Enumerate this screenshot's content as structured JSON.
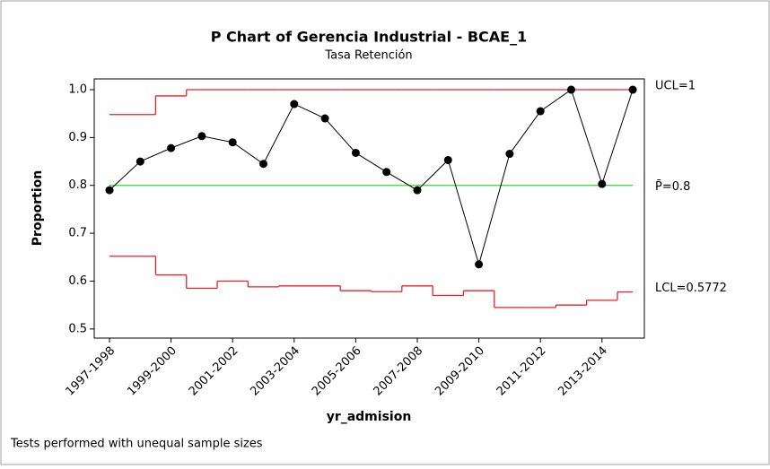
{
  "chart_data": {
    "type": "p-chart",
    "title": "P Chart of Gerencia Industrial - BCAE_1",
    "subtitle": "Tasa Retención",
    "ylabel": "Proportion",
    "xlabel": "yr_admision",
    "footnote": "Tests performed with unequal sample sizes",
    "categories": [
      "1997-1998",
      null,
      "1999-2000",
      null,
      "2001-2002",
      null,
      "2003-2004",
      null,
      "2005-2006",
      null,
      "2007-2008",
      null,
      "2009-2010",
      null,
      "2011-2012",
      null,
      "2013-2014",
      null
    ],
    "values": [
      0.79,
      0.85,
      0.878,
      0.903,
      0.89,
      0.845,
      0.97,
      0.94,
      0.868,
      0.828,
      0.79,
      0.853,
      0.635,
      0.866,
      0.955,
      1.0,
      0.803,
      1.0
    ],
    "ucl": [
      0.948,
      0.948,
      0.987,
      1,
      1,
      1,
      1,
      1,
      1,
      1,
      1,
      1,
      1,
      1,
      1,
      1,
      1,
      1
    ],
    "lcl": [
      0.652,
      0.652,
      0.613,
      0.585,
      0.6,
      0.588,
      0.59,
      0.59,
      0.58,
      0.578,
      0.59,
      0.57,
      0.58,
      0.545,
      0.545,
      0.55,
      0.56,
      0.5772
    ],
    "center": 0.8,
    "ucl_label": "UCL=1",
    "center_label": "P̄=0.8",
    "lcl_label": "LCL=0.5772",
    "color": "#000000",
    "limit_color": "#e8202a",
    "center_color": "#2ddc2d",
    "ylim": [
      0.481,
      1.0225
    ],
    "yticks": [
      0.5,
      0.6,
      0.7,
      0.8,
      0.9,
      {
        "value": 1,
        "label": "1.0"
      }
    ]
  }
}
